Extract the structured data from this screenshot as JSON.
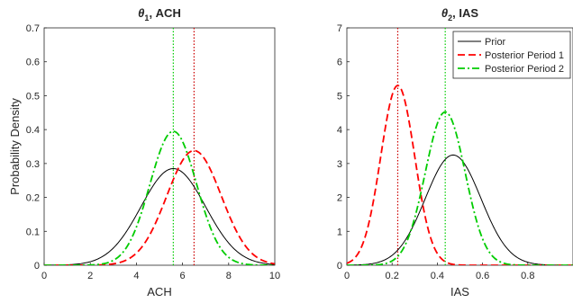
{
  "chart_data": [
    {
      "type": "line",
      "title_parts": [
        "θ",
        "1",
        ", ACH"
      ],
      "xlabel": "ACH",
      "ylabel": "Probability Density",
      "xlim": [
        0,
        10
      ],
      "ylim": [
        0,
        0.7
      ],
      "xticks": [
        0,
        2,
        4,
        6,
        8,
        10
      ],
      "yticks": [
        0,
        0.1,
        0.2,
        0.3,
        0.4,
        0.5,
        0.6,
        0.7
      ],
      "series": [
        {
          "name": "Prior",
          "color": "#000000",
          "dash": "solid",
          "mean": 5.6,
          "sd": 1.4,
          "peak": 0.285
        },
        {
          "name": "Posterior Period 1",
          "color": "#ff0000",
          "dash": "dashed",
          "mean": 6.5,
          "sd": 1.18,
          "peak": 0.338
        },
        {
          "name": "Posterior Period 2",
          "color": "#00cc00",
          "dash": "dashdot",
          "mean": 5.6,
          "sd": 1.01,
          "peak": 0.395
        }
      ],
      "vlines": [
        {
          "x": 5.6,
          "color": "#00cc00"
        },
        {
          "x": 6.5,
          "color": "#cc0000"
        }
      ]
    },
    {
      "type": "line",
      "title_parts": [
        "θ",
        "2",
        ", IAS"
      ],
      "xlabel": "IAS",
      "ylabel": "",
      "xlim": [
        0,
        1
      ],
      "ylim": [
        0,
        7
      ],
      "xticks": [
        0,
        0.2,
        0.4,
        0.6,
        0.8
      ],
      "yticks": [
        0,
        1,
        2,
        3,
        4,
        5,
        6,
        7
      ],
      "series": [
        {
          "name": "Prior",
          "color": "#000000",
          "dash": "solid",
          "mean": 0.47,
          "sd": 0.123,
          "peak": 3.25
        },
        {
          "name": "Posterior Period 1",
          "color": "#ff0000",
          "dash": "dashed",
          "mean": 0.225,
          "sd": 0.075,
          "peak": 5.3
        },
        {
          "name": "Posterior Period 2",
          "color": "#00cc00",
          "dash": "dashdot",
          "mean": 0.435,
          "sd": 0.088,
          "peak": 4.52
        }
      ],
      "vlines": [
        {
          "x": 0.225,
          "color": "#cc0000"
        },
        {
          "x": 0.435,
          "color": "#00cc00"
        }
      ],
      "legend": {
        "position": "top-right",
        "entries": [
          "Prior",
          "Posterior Period 1",
          "Posterior Period 2"
        ]
      }
    }
  ]
}
